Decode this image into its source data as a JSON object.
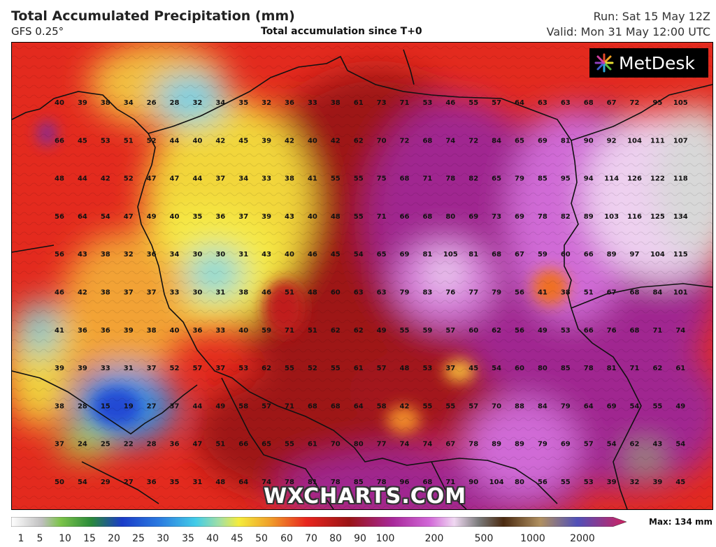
{
  "header": {
    "title": "Total Accumulated Precipitation (mm)",
    "model": "GFS 0.25°",
    "subtitle": "Total accumulation since T+0",
    "run": "Run: Sat 15 May 12Z",
    "valid": "Valid: Mon 31 May 12:00 UTC"
  },
  "logo": {
    "text": "MetDesk"
  },
  "watermark": "WXCHARTS.COM",
  "legend": {
    "max_label": "Max: 134 mm",
    "ticks": [
      "1",
      "5",
      "10",
      "15",
      "20",
      "25",
      "30",
      "35",
      "40",
      "45",
      "50",
      "60",
      "70",
      "80",
      "90",
      "100",
      "200",
      "500",
      "1000",
      "2000"
    ]
  },
  "colors": {
    "yellow": "#f4ec3c",
    "orange": "#f08a2a",
    "red": "#e8261e",
    "darkred": "#9a1416",
    "purple": "#a8289a",
    "magenta": "#d268d8",
    "lavender": "#eac8ee",
    "white": "#f4f4f4",
    "grey": "#cccccc",
    "blue": "#2a58d8",
    "cyan": "#42cce8",
    "green": "#7cc44a"
  },
  "grid_values": [
    [
      "40",
      "39",
      "38",
      "34",
      "26",
      "28",
      "32",
      "34",
      "35",
      "32",
      "36",
      "33",
      "38",
      "61",
      "73",
      "71",
      "53",
      "46",
      "55",
      "57",
      "64",
      "63",
      "63",
      "68",
      "67",
      "72",
      "95",
      "105"
    ],
    [
      "66",
      "45",
      "53",
      "51",
      "52",
      "44",
      "40",
      "42",
      "45",
      "39",
      "42",
      "40",
      "42",
      "62",
      "70",
      "72",
      "68",
      "74",
      "72",
      "84",
      "65",
      "69",
      "81",
      "90",
      "92",
      "104",
      "111",
      "107"
    ],
    [
      "48",
      "44",
      "42",
      "52",
      "47",
      "47",
      "44",
      "37",
      "34",
      "33",
      "38",
      "41",
      "55",
      "55",
      "75",
      "68",
      "71",
      "78",
      "82",
      "65",
      "79",
      "85",
      "95",
      "94",
      "114",
      "126",
      "122",
      "118"
    ],
    [
      "56",
      "64",
      "54",
      "47",
      "49",
      "40",
      "35",
      "36",
      "37",
      "39",
      "43",
      "40",
      "48",
      "55",
      "71",
      "66",
      "68",
      "80",
      "69",
      "73",
      "69",
      "78",
      "82",
      "89",
      "103",
      "116",
      "125",
      "134"
    ],
    [
      "56",
      "43",
      "38",
      "32",
      "36",
      "34",
      "30",
      "30",
      "31",
      "43",
      "40",
      "46",
      "45",
      "54",
      "65",
      "69",
      "81",
      "105",
      "81",
      "68",
      "67",
      "59",
      "60",
      "66",
      "89",
      "97",
      "104",
      "115"
    ],
    [
      "46",
      "42",
      "38",
      "37",
      "37",
      "33",
      "30",
      "31",
      "38",
      "46",
      "51",
      "48",
      "60",
      "63",
      "63",
      "79",
      "83",
      "76",
      "77",
      "79",
      "56",
      "41",
      "38",
      "51",
      "67",
      "68",
      "84",
      "101"
    ],
    [
      "41",
      "36",
      "36",
      "39",
      "38",
      "40",
      "36",
      "33",
      "40",
      "59",
      "71",
      "51",
      "62",
      "62",
      "49",
      "55",
      "59",
      "57",
      "60",
      "62",
      "56",
      "49",
      "53",
      "66",
      "76",
      "68",
      "71",
      "74"
    ],
    [
      "39",
      "39",
      "33",
      "31",
      "37",
      "52",
      "57",
      "37",
      "53",
      "62",
      "55",
      "52",
      "55",
      "61",
      "57",
      "48",
      "53",
      "37",
      "45",
      "54",
      "60",
      "80",
      "85",
      "78",
      "81",
      "71",
      "62",
      "61"
    ],
    [
      "38",
      "28",
      "15",
      "19",
      "27",
      "37",
      "44",
      "49",
      "58",
      "57",
      "71",
      "68",
      "68",
      "64",
      "58",
      "42",
      "55",
      "55",
      "57",
      "70",
      "88",
      "84",
      "79",
      "64",
      "69",
      "54",
      "55",
      "49"
    ],
    [
      "37",
      "24",
      "25",
      "22",
      "28",
      "36",
      "47",
      "51",
      "66",
      "65",
      "55",
      "61",
      "70",
      "80",
      "77",
      "74",
      "74",
      "67",
      "78",
      "89",
      "89",
      "79",
      "69",
      "57",
      "54",
      "62",
      "43",
      "54"
    ],
    [
      "50",
      "54",
      "29",
      "27",
      "36",
      "35",
      "31",
      "48",
      "64",
      "74",
      "78",
      "81",
      "78",
      "85",
      "78",
      "96",
      "68",
      "71",
      "90",
      "104",
      "80",
      "56",
      "55",
      "53",
      "39",
      "32",
      "39",
      "45"
    ]
  ]
}
